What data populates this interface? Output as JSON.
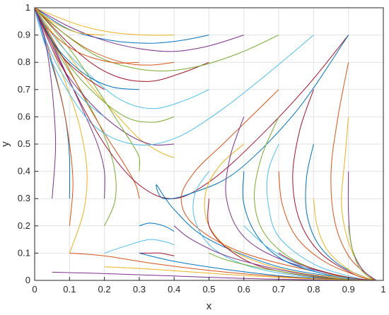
{
  "chart_data": {
    "type": "line",
    "title": "",
    "xlabel": "x",
    "ylabel": "y",
    "xlim": [
      0,
      1
    ],
    "ylim": [
      0,
      1
    ],
    "grid": true,
    "xticks": [
      "0",
      "0.1",
      "0.2",
      "0.3",
      "0.4",
      "0.5",
      "0.6",
      "0.7",
      "0.8",
      "0.9",
      "1"
    ],
    "yticks": [
      "0",
      "0.1",
      "0.2",
      "0.3",
      "0.4",
      "0.5",
      "0.6",
      "0.7",
      "0.8",
      "0.9",
      "1"
    ],
    "colors": [
      "#0072BD",
      "#D95319",
      "#EDB120",
      "#7E2F8E",
      "#77AC30",
      "#4DBEEE",
      "#A2142F"
    ],
    "series": [
      {
        "x": [
          0.1,
          0.1,
          0.09,
          0.07,
          0.04,
          0.01,
          0.0
        ],
        "y": [
          0.3,
          0.45,
          0.58,
          0.7,
          0.83,
          0.95,
          1.0
        ]
      },
      {
        "x": [
          0.1,
          0.11,
          0.1,
          0.08,
          0.05,
          0.02,
          0.0
        ],
        "y": [
          0.2,
          0.35,
          0.5,
          0.65,
          0.8,
          0.93,
          1.0
        ]
      },
      {
        "x": [
          0.1,
          0.14,
          0.15,
          0.13,
          0.09,
          0.04,
          0.0
        ],
        "y": [
          0.1,
          0.25,
          0.4,
          0.56,
          0.72,
          0.88,
          1.0
        ]
      },
      {
        "x": [
          0.2,
          0.2,
          0.18,
          0.14,
          0.09,
          0.04,
          0.0
        ],
        "y": [
          0.3,
          0.4,
          0.5,
          0.62,
          0.76,
          0.9,
          1.0
        ]
      },
      {
        "x": [
          0.2,
          0.23,
          0.23,
          0.2,
          0.14,
          0.06,
          0.0
        ],
        "y": [
          0.2,
          0.29,
          0.4,
          0.53,
          0.68,
          0.85,
          1.0
        ]
      },
      {
        "x": [
          0.2,
          0.27,
          0.33,
          0.38,
          0.4
        ],
        "y": [
          0.1,
          0.13,
          0.15,
          0.14,
          0.13
        ]
      },
      {
        "x": [
          0.3,
          0.33,
          0.36,
          0.4
        ],
        "y": [
          0.1,
          0.1,
          0.1,
          0.09
        ]
      },
      {
        "x": [
          0.3,
          0.33,
          0.37,
          0.4
        ],
        "y": [
          0.2,
          0.21,
          0.2,
          0.18
        ]
      },
      {
        "x": [
          0.3,
          0.29,
          0.26,
          0.21,
          0.15,
          0.08,
          0.0
        ],
        "y": [
          0.3,
          0.35,
          0.42,
          0.52,
          0.65,
          0.82,
          1.0
        ]
      },
      {
        "x": [
          0.4,
          0.36,
          0.3,
          0.24,
          0.17,
          0.09,
          0.0
        ],
        "y": [
          0.45,
          0.47,
          0.52,
          0.6,
          0.7,
          0.84,
          1.0
        ]
      },
      {
        "x": [
          0.4,
          0.33,
          0.25,
          0.16,
          0.07,
          0.0
        ],
        "y": [
          0.5,
          0.5,
          0.55,
          0.65,
          0.8,
          1.0
        ]
      },
      {
        "x": [
          0.4,
          0.34,
          0.26,
          0.16,
          0.07,
          0.0
        ],
        "y": [
          0.6,
          0.58,
          0.6,
          0.7,
          0.84,
          1.0
        ]
      },
      {
        "x": [
          0.5,
          0.43,
          0.34,
          0.25,
          0.16,
          0.07,
          0.0
        ],
        "y": [
          0.7,
          0.66,
          0.63,
          0.66,
          0.75,
          0.87,
          1.0
        ]
      },
      {
        "x": [
          0.5,
          0.42,
          0.33,
          0.23,
          0.13,
          0.0
        ],
        "y": [
          0.8,
          0.76,
          0.73,
          0.75,
          0.83,
          1.0
        ]
      },
      {
        "x": [
          0.5,
          0.42,
          0.33,
          0.22,
          0.1,
          0.0
        ],
        "y": [
          0.9,
          0.88,
          0.87,
          0.88,
          0.92,
          1.0
        ]
      },
      {
        "x": [
          0.4,
          0.33,
          0.25,
          0.15,
          0.06,
          0.0
        ],
        "y": [
          0.8,
          0.79,
          0.8,
          0.85,
          0.93,
          1.0
        ]
      },
      {
        "x": [
          0.4,
          0.32,
          0.22,
          0.12,
          0.0
        ],
        "y": [
          0.9,
          0.9,
          0.91,
          0.94,
          1.0
        ]
      },
      {
        "x": [
          0.6,
          0.5,
          0.4,
          0.3,
          0.2,
          0.1,
          0.0
        ],
        "y": [
          0.9,
          0.86,
          0.84,
          0.85,
          0.88,
          0.93,
          1.0
        ]
      },
      {
        "x": [
          0.7,
          0.58,
          0.45,
          0.33,
          0.2,
          0.1,
          0.0
        ],
        "y": [
          0.9,
          0.83,
          0.78,
          0.77,
          0.81,
          0.89,
          1.0
        ]
      },
      {
        "x": [
          0.8,
          0.67,
          0.53,
          0.4,
          0.28,
          0.16,
          0.05,
          0.0
        ],
        "y": [
          0.9,
          0.76,
          0.62,
          0.52,
          0.5,
          0.58,
          0.8,
          1.0
        ]
      },
      {
        "x": [
          0.9,
          0.78,
          0.64,
          0.51,
          0.4,
          0.3,
          0.2,
          0.1,
          0.0
        ],
        "y": [
          0.9,
          0.71,
          0.52,
          0.37,
          0.3,
          0.35,
          0.5,
          0.73,
          1.0
        ]
      },
      {
        "x": [
          0.9,
          0.75,
          0.58,
          0.45,
          0.37,
          0.35,
          0.4,
          0.5,
          0.7,
          0.9,
          0.98
        ],
        "y": [
          0.9,
          0.62,
          0.4,
          0.32,
          0.3,
          0.35,
          0.26,
          0.15,
          0.05,
          0.008,
          0.0
        ]
      },
      {
        "x": [
          0.7,
          0.62,
          0.54,
          0.46,
          0.42,
          0.46,
          0.6,
          0.85,
          0.98
        ],
        "y": [
          0.7,
          0.6,
          0.5,
          0.4,
          0.3,
          0.2,
          0.1,
          0.02,
          0.0
        ]
      },
      {
        "x": [
          0.6,
          0.53,
          0.49,
          0.5,
          0.58,
          0.75,
          0.98
        ],
        "y": [
          0.5,
          0.42,
          0.32,
          0.2,
          0.1,
          0.03,
          0.0
        ]
      },
      {
        "x": [
          0.6,
          0.56,
          0.55,
          0.6,
          0.72,
          0.9,
          0.98
        ],
        "y": [
          0.6,
          0.45,
          0.3,
          0.16,
          0.07,
          0.01,
          0.0
        ]
      },
      {
        "x": [
          0.7,
          0.65,
          0.63,
          0.66,
          0.75,
          0.88,
          0.98
        ],
        "y": [
          0.6,
          0.45,
          0.3,
          0.17,
          0.07,
          0.015,
          0.0
        ]
      },
      {
        "x": [
          0.7,
          0.67,
          0.67,
          0.7,
          0.8,
          0.92,
          0.98
        ],
        "y": [
          0.5,
          0.4,
          0.28,
          0.16,
          0.06,
          0.01,
          0.0
        ]
      },
      {
        "x": [
          0.8,
          0.76,
          0.74,
          0.76,
          0.82,
          0.92,
          0.98
        ],
        "y": [
          0.7,
          0.55,
          0.38,
          0.22,
          0.1,
          0.02,
          0.0
        ]
      },
      {
        "x": [
          0.8,
          0.78,
          0.78,
          0.81,
          0.87,
          0.95,
          0.98
        ],
        "y": [
          0.5,
          0.38,
          0.25,
          0.14,
          0.06,
          0.01,
          0.0
        ]
      },
      {
        "x": [
          0.9,
          0.87,
          0.85,
          0.86,
          0.9,
          0.96,
          0.98
        ],
        "y": [
          0.8,
          0.6,
          0.4,
          0.22,
          0.09,
          0.015,
          0.0
        ]
      },
      {
        "x": [
          0.9,
          0.89,
          0.88,
          0.9,
          0.94,
          0.98
        ],
        "y": [
          0.6,
          0.45,
          0.28,
          0.14,
          0.04,
          0.0
        ]
      },
      {
        "x": [
          0.9,
          0.9,
          0.91,
          0.94,
          0.98
        ],
        "y": [
          0.4,
          0.25,
          0.12,
          0.04,
          0.0
        ]
      },
      {
        "x": [
          0.9,
          0.91,
          0.93,
          0.96,
          0.98
        ],
        "y": [
          0.2,
          0.12,
          0.05,
          0.01,
          0.0
        ]
      },
      {
        "x": [
          0.5,
          0.46,
          0.46,
          0.51,
          0.62,
          0.8,
          0.98
        ],
        "y": [
          0.4,
          0.32,
          0.22,
          0.12,
          0.05,
          0.01,
          0.0
        ]
      },
      {
        "x": [
          0.5,
          0.5,
          0.55,
          0.65,
          0.82,
          0.98
        ],
        "y": [
          0.3,
          0.2,
          0.12,
          0.05,
          0.01,
          0.0
        ]
      },
      {
        "x": [
          0.6,
          0.6,
          0.64,
          0.72,
          0.86,
          0.98
        ],
        "y": [
          0.4,
          0.28,
          0.16,
          0.07,
          0.015,
          0.0
        ]
      },
      {
        "x": [
          0.7,
          0.71,
          0.75,
          0.83,
          0.93,
          0.98
        ],
        "y": [
          0.4,
          0.28,
          0.16,
          0.07,
          0.015,
          0.0
        ]
      },
      {
        "x": [
          0.8,
          0.81,
          0.84,
          0.9,
          0.96,
          0.98
        ],
        "y": [
          0.3,
          0.2,
          0.11,
          0.04,
          0.005,
          0.0
        ]
      },
      {
        "x": [
          0.4,
          0.45,
          0.55,
          0.7,
          0.85,
          0.98
        ],
        "y": [
          0.2,
          0.15,
          0.09,
          0.04,
          0.01,
          0.0
        ]
      },
      {
        "x": [
          0.5,
          0.55,
          0.65,
          0.78,
          0.9,
          0.98
        ],
        "y": [
          0.1,
          0.075,
          0.045,
          0.018,
          0.004,
          0.0
        ]
      },
      {
        "x": [
          0.6,
          0.67,
          0.77,
          0.87,
          0.98
        ],
        "y": [
          0.2,
          0.12,
          0.05,
          0.013,
          0.0
        ]
      },
      {
        "x": [
          0.7,
          0.76,
          0.85,
          0.93,
          0.98
        ],
        "y": [
          0.1,
          0.06,
          0.025,
          0.005,
          0.0
        ]
      },
      {
        "x": [
          0.3,
          0.4,
          0.55,
          0.72,
          0.88,
          0.98
        ],
        "y": [
          0.1,
          0.07,
          0.04,
          0.015,
          0.003,
          0.0
        ]
      },
      {
        "x": [
          0.1,
          0.2,
          0.35,
          0.55,
          0.75,
          0.9,
          0.98
        ],
        "y": [
          0.1,
          0.09,
          0.06,
          0.03,
          0.01,
          0.002,
          0.0
        ]
      },
      {
        "x": [
          0.2,
          0.35,
          0.55,
          0.75,
          0.9,
          0.98
        ],
        "y": [
          0.05,
          0.04,
          0.022,
          0.008,
          0.002,
          0.0
        ]
      },
      {
        "x": [
          0.05,
          0.2,
          0.4,
          0.6,
          0.8,
          0.98
        ],
        "y": [
          0.03,
          0.025,
          0.016,
          0.007,
          0.002,
          0.0
        ]
      },
      {
        "x": [
          0.3,
          0.3,
          0.28,
          0.24,
          0.18,
          0.1,
          0.0
        ],
        "y": [
          0.4,
          0.45,
          0.5,
          0.58,
          0.7,
          0.85,
          1.0
        ]
      },
      {
        "x": [
          0.2,
          0.15,
          0.1,
          0.06,
          0.02,
          0.0
        ],
        "y": [
          0.6,
          0.65,
          0.72,
          0.8,
          0.92,
          1.0
        ]
      },
      {
        "x": [
          0.2,
          0.14,
          0.08,
          0.03,
          0.0
        ],
        "y": [
          0.7,
          0.75,
          0.82,
          0.92,
          1.0
        ]
      },
      {
        "x": [
          0.3,
          0.22,
          0.14,
          0.06,
          0.0
        ],
        "y": [
          0.7,
          0.71,
          0.76,
          0.86,
          1.0
        ]
      },
      {
        "x": [
          0.3,
          0.22,
          0.12,
          0.04,
          0.0
        ],
        "y": [
          0.8,
          0.8,
          0.84,
          0.92,
          1.0
        ]
      },
      {
        "x": [
          0.2,
          0.12,
          0.05,
          0.0
        ],
        "y": [
          0.9,
          0.91,
          0.95,
          1.0
        ]
      },
      {
        "x": [
          0.05,
          0.06,
          0.05,
          0.03,
          0.0
        ],
        "y": [
          0.3,
          0.5,
          0.7,
          0.88,
          1.0
        ]
      },
      {
        "x": [
          0.0,
          0.0
        ],
        "y": [
          0.0,
          1.0
        ]
      },
      {
        "x": [
          0.0,
          1.0
        ],
        "y": [
          1.0,
          1.0
        ]
      },
      {
        "x": [
          0.0,
          1.0
        ],
        "y": [
          0.0,
          0.0
        ]
      }
    ]
  }
}
